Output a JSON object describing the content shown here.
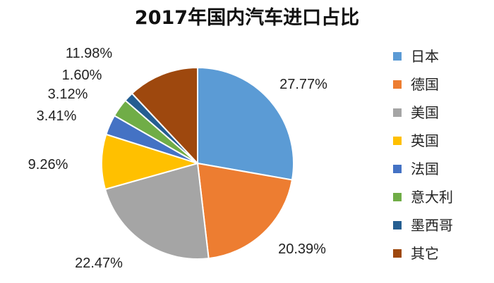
{
  "chart_data": {
    "type": "pie",
    "title": "2017年国内汽车进口占比",
    "legend_position": "right",
    "slices": [
      {
        "name": "日本",
        "value": 27.77,
        "label": "27.77%",
        "color": "#5B9BD5"
      },
      {
        "name": "德国",
        "value": 20.39,
        "label": "20.39%",
        "color": "#ED7D31"
      },
      {
        "name": "美国",
        "value": 22.47,
        "label": "22.47%",
        "color": "#A5A5A5"
      },
      {
        "name": "英国",
        "value": 9.26,
        "label": "9.26%",
        "color": "#FFC000"
      },
      {
        "name": "法国",
        "value": 3.41,
        "label": "3.41%",
        "color": "#4472C4"
      },
      {
        "name": "意大利",
        "value": 3.12,
        "label": "3.12%",
        "color": "#70AD47"
      },
      {
        "name": "墨西哥",
        "value": 1.6,
        "label": "1.60%",
        "color": "#255E91"
      },
      {
        "name": "其它",
        "value": 11.98,
        "label": "11.98%",
        "color": "#9E480E"
      }
    ]
  }
}
